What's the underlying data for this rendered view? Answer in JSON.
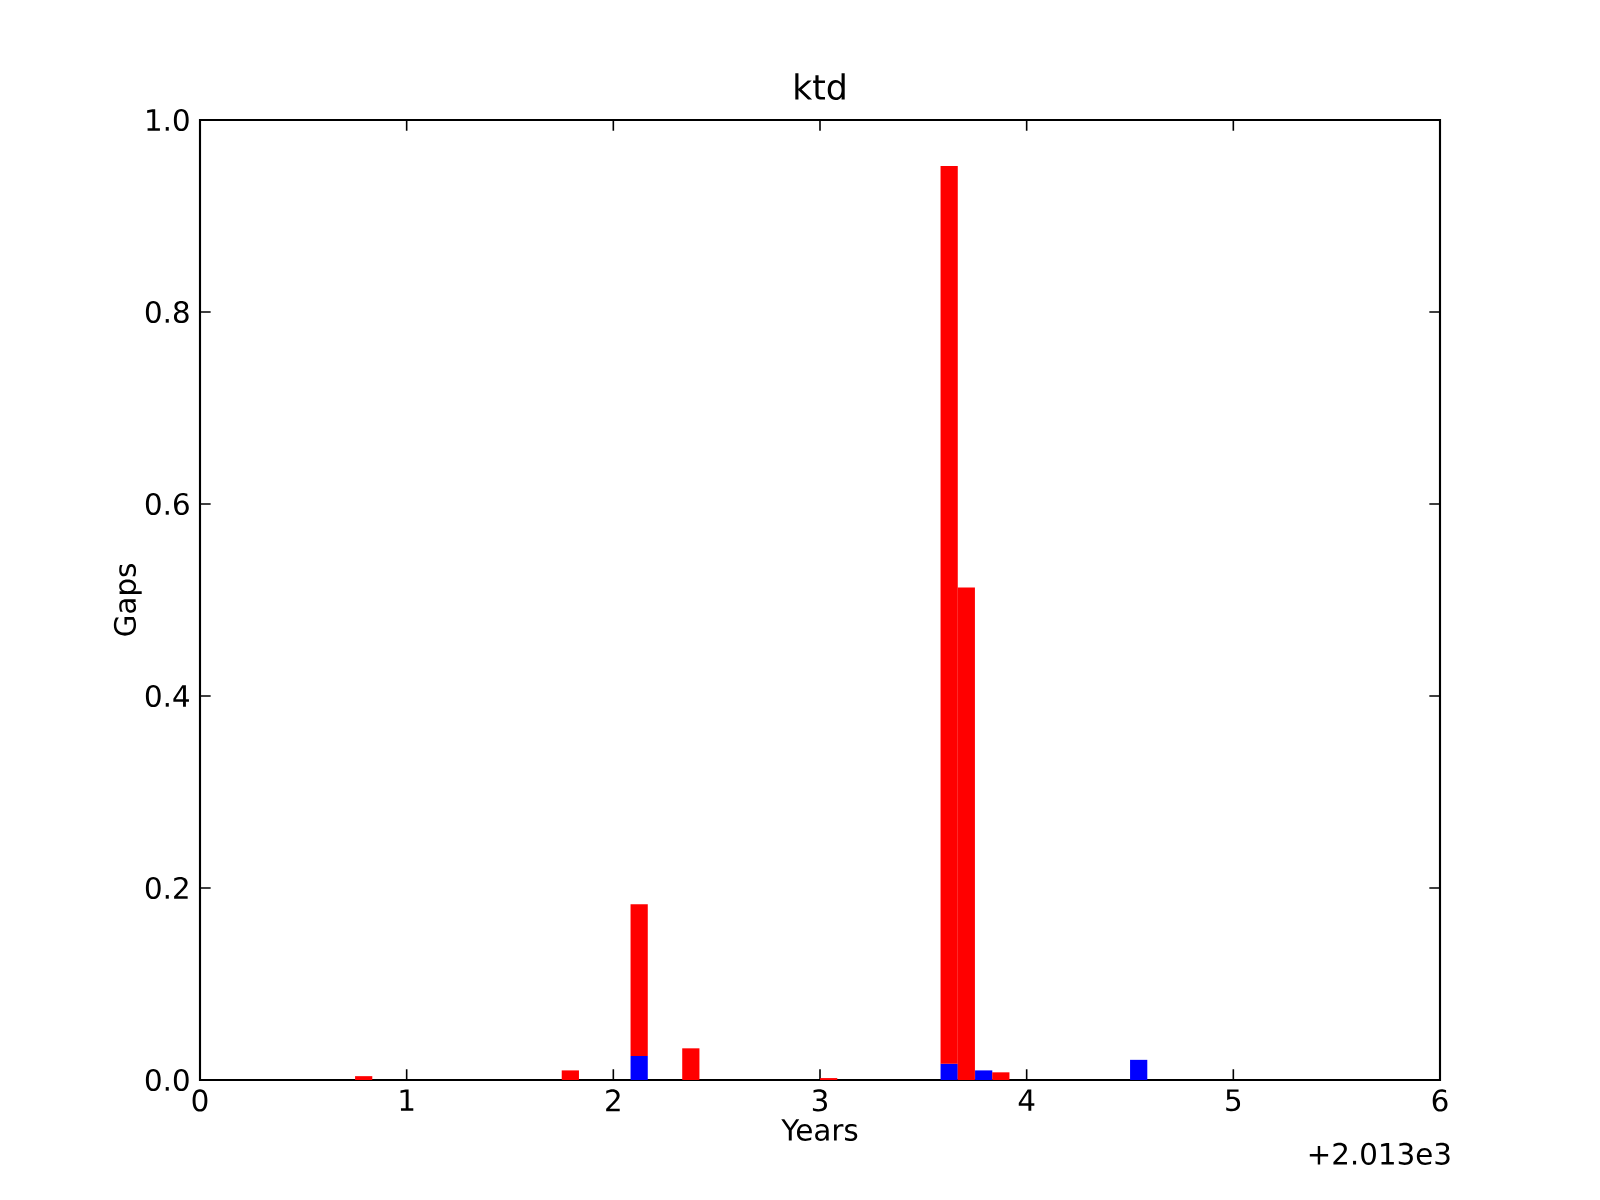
{
  "chart_data": {
    "type": "bar",
    "title": "ktd",
    "xlabel": "Years",
    "ylabel": "Gaps",
    "x": [
      0.792,
      1.792,
      2.125,
      2.375,
      3.042,
      3.625,
      3.708,
      3.792,
      3.875,
      4.542
    ],
    "series": [
      {
        "color": "#0000ff",
        "values": [
          null,
          null,
          0.025,
          null,
          null,
          0.017,
          null,
          0.01,
          null,
          0.021
        ]
      },
      {
        "color": "#ff0000",
        "values": [
          0.004,
          0.01,
          0.158,
          0.033,
          0.002,
          0.935,
          0.513,
          null,
          0.008,
          null
        ]
      }
    ],
    "stacked": true,
    "xlim": [
      0,
      6
    ],
    "xticks": [
      0,
      1,
      2,
      3,
      4,
      5,
      6
    ],
    "ylim": [
      0,
      1
    ],
    "yticks": [
      {
        "value": 0,
        "label": "0.0"
      },
      {
        "value": 0.2,
        "label": "0.2"
      },
      {
        "value": 0.4,
        "label": "0.4"
      },
      {
        "value": 0.6,
        "label": "0.6"
      },
      {
        "value": 0.8,
        "label": "0.8"
      },
      {
        "value": 1,
        "label": "1.0"
      }
    ],
    "annotations": [
      "+2.013e3"
    ],
    "grid": false
  }
}
